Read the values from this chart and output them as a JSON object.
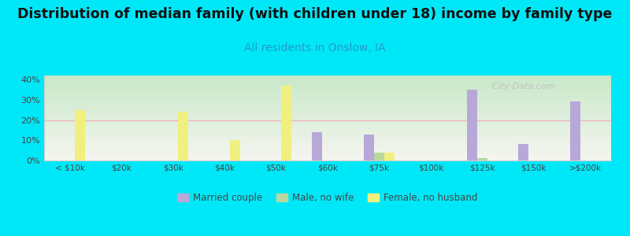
{
  "title": "Distribution of median family (with children under 18) income by family type",
  "subtitle": "All residents in Onslow, IA",
  "categories": [
    "< $10k",
    "$20k",
    "$30k",
    "$40k",
    "$50k",
    "$60k",
    "$75k",
    "$100k",
    "$125k",
    "$150k",
    ">$200k"
  ],
  "married_couple": [
    0,
    0,
    0,
    0,
    0,
    14,
    13,
    0,
    35,
    8,
    29
  ],
  "male_no_wife": [
    0,
    0,
    0,
    0,
    0,
    0,
    4,
    0,
    1,
    0,
    0
  ],
  "female_no_husband": [
    25,
    0,
    24,
    10,
    37,
    0,
    4,
    0,
    0,
    0,
    0
  ],
  "bar_colors": {
    "married_couple": "#b8a8d8",
    "male_no_wife": "#b8d8a0",
    "female_no_husband": "#f0f080"
  },
  "ylim": [
    0,
    42
  ],
  "yticks": [
    0,
    10,
    20,
    30,
    40
  ],
  "ytick_labels": [
    "0%",
    "10%",
    "20%",
    "30%",
    "40%"
  ],
  "background_color": "#00e8f8",
  "plot_bg_top": "#c8e8c8",
  "plot_bg_bottom": "#f5f5f0",
  "title_fontsize": 12.5,
  "subtitle_fontsize": 10,
  "subtitle_color": "#2299cc",
  "watermark": "  City-Data.com",
  "bar_width": 0.2
}
